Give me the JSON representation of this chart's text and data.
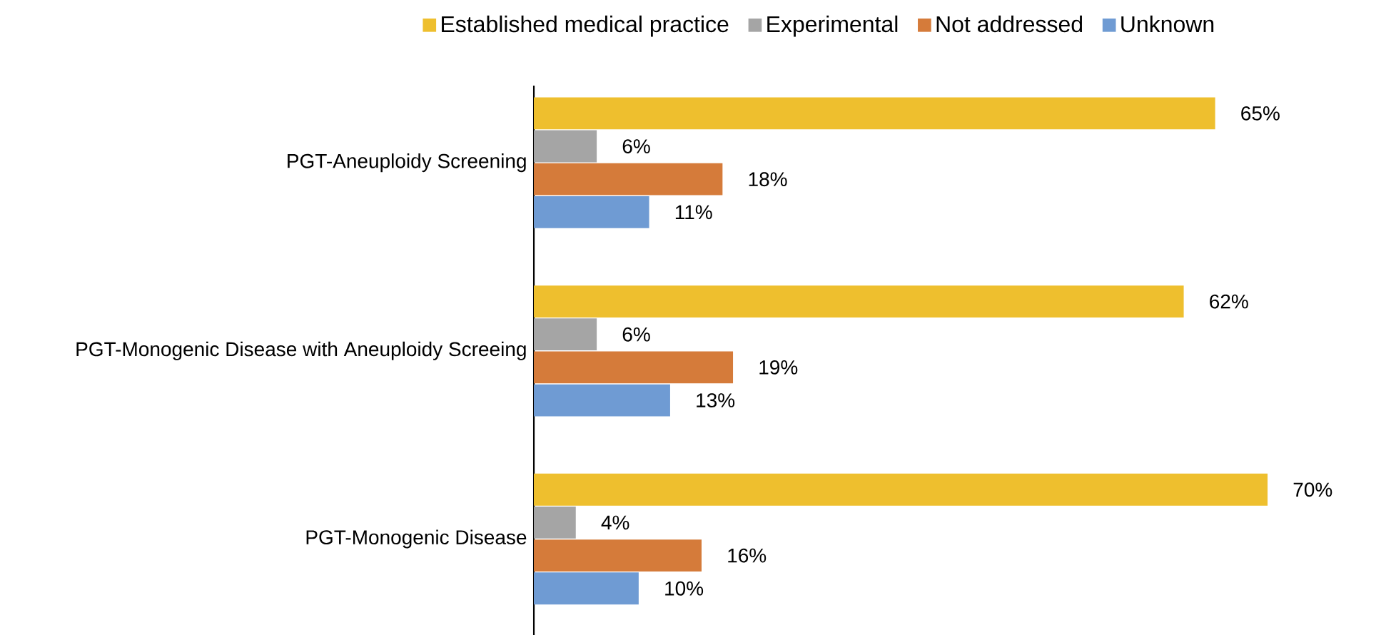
{
  "chart_data": {
    "type": "bar",
    "orientation": "horizontal",
    "legend": "top",
    "categories": [
      "PGT-Aneuploidy Screening",
      "PGT-Monogenic Disease with Aneuploidy Screeing",
      "PGT-Monogenic Disease"
    ],
    "series": [
      {
        "name": "Established medical practice",
        "color": "#eebf2e",
        "values": [
          65,
          62,
          70
        ],
        "value_labels": [
          "65%",
          "62%",
          "70%"
        ]
      },
      {
        "name": "Experimental",
        "color": "#a5a5a5",
        "values": [
          6,
          6,
          4
        ],
        "value_labels": [
          "6%",
          "6%",
          "4%"
        ]
      },
      {
        "name": "Not addressed",
        "color": "#d57b3a",
        "values": [
          18,
          19,
          16
        ],
        "value_labels": [
          "18%",
          "19%",
          "16%"
        ]
      },
      {
        "name": "Unknown",
        "color": "#6f9bd3",
        "values": [
          11,
          13,
          10
        ],
        "value_labels": [
          "11%",
          "13%",
          "10%"
        ]
      }
    ]
  }
}
